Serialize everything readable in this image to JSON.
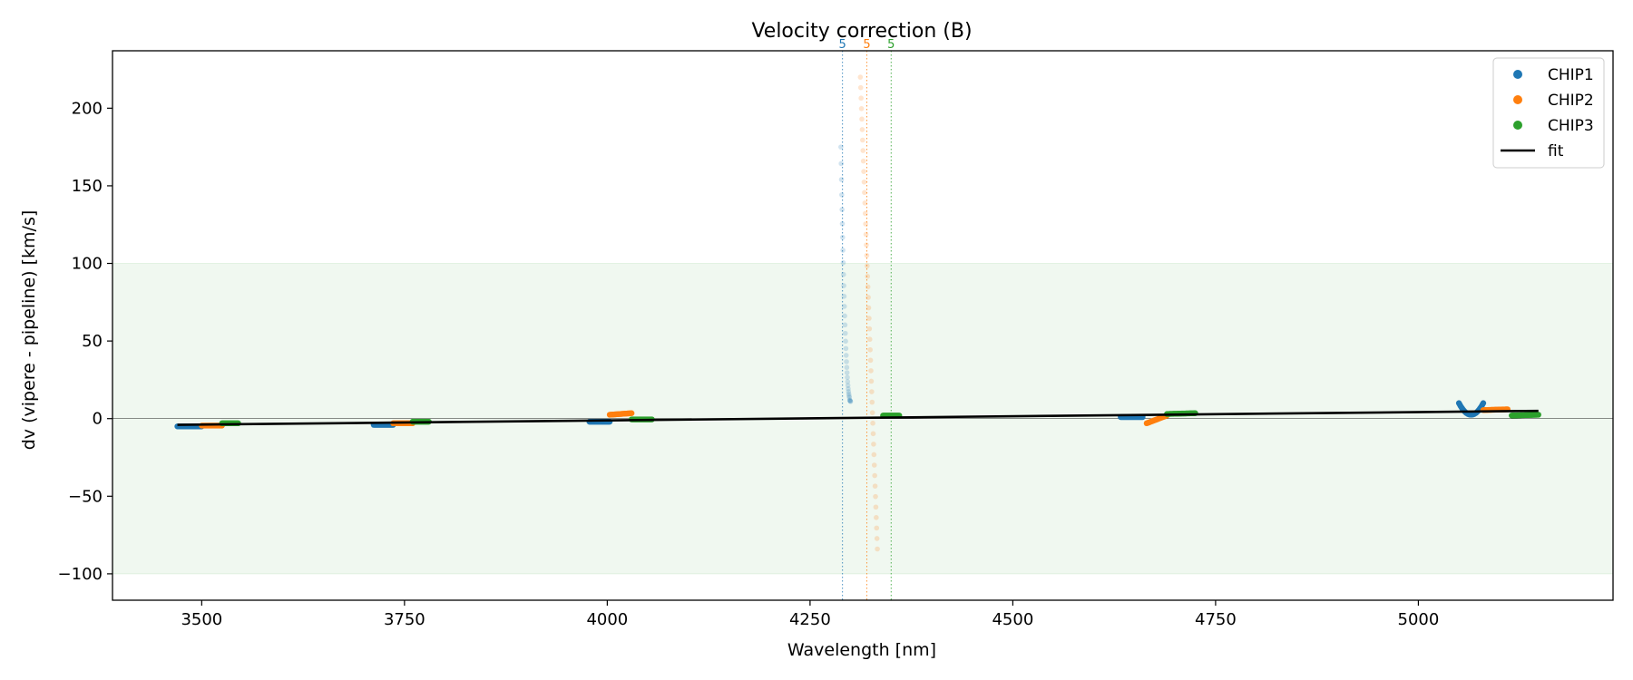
{
  "chart_data": {
    "type": "scatter",
    "title": "Velocity correction (B)",
    "xlabel": "Wavelength [nm]",
    "ylabel": "dv (vipere - pipeline) [km/s]",
    "xlim": [
      3390,
      5240
    ],
    "ylim": [
      -117,
      237
    ],
    "xticks": [
      3500,
      3750,
      4000,
      4250,
      4500,
      4750,
      5000
    ],
    "xtick_labels": [
      "3500",
      "3750",
      "4000",
      "4250",
      "4500",
      "4750",
      "5000"
    ],
    "yticks": [
      -100,
      -50,
      0,
      50,
      100,
      150,
      200
    ],
    "ytick_labels": [
      "−100",
      "−50",
      "0",
      "50",
      "100",
      "150",
      "200"
    ],
    "good_band": [
      -100,
      100
    ],
    "zero_line": 0,
    "colors": {
      "CHIP1": "#1f77b4",
      "CHIP2": "#ff7f0e",
      "CHIP3": "#2ca02c",
      "fit": "#000000",
      "band": "#2ca02c"
    },
    "legend": {
      "position": "top-right",
      "entries": [
        "CHIP1",
        "CHIP2",
        "CHIP3",
        "fit"
      ]
    },
    "series": [
      {
        "name": "CHIP1",
        "segments": [
          {
            "x0": 3470,
            "x1": 3500,
            "y0": -5,
            "y1": -5
          },
          {
            "x0": 3712,
            "x1": 3736,
            "y0": -4,
            "y1": -4
          },
          {
            "x0": 3978,
            "x1": 4003,
            "y0": -2,
            "y1": -2
          },
          {
            "x0": 4633,
            "x1": 4660,
            "y0": 1,
            "y1": 1
          }
        ],
        "curves": [
          {
            "x0": 5050,
            "x1": 5080,
            "vertex_x": 5065,
            "vertex_y": 2.5,
            "edge_y": 10
          }
        ]
      },
      {
        "name": "CHIP2",
        "segments": [
          {
            "x0": 3500,
            "x1": 3525,
            "y0": -4.5,
            "y1": -4.5
          },
          {
            "x0": 3736,
            "x1": 3760,
            "y0": -3,
            "y1": -3
          },
          {
            "x0": 4003,
            "x1": 4030,
            "y0": 2.5,
            "y1": 3.5
          },
          {
            "x0": 4665,
            "x1": 4690,
            "y0": -3,
            "y1": 2
          },
          {
            "x0": 5080,
            "x1": 5110,
            "y0": 5.5,
            "y1": 6
          }
        ]
      },
      {
        "name": "CHIP3",
        "segments": [
          {
            "x0": 3525,
            "x1": 3545,
            "y0": -3,
            "y1": -3
          },
          {
            "x0": 3760,
            "x1": 3780,
            "y0": -2,
            "y1": -2
          },
          {
            "x0": 4030,
            "x1": 4055,
            "y0": -0.5,
            "y1": -0.5
          },
          {
            "x0": 4340,
            "x1": 4360,
            "y0": 2,
            "y1": 2
          },
          {
            "x0": 4690,
            "x1": 4725,
            "y0": 3,
            "y1": 3.5
          },
          {
            "x0": 5115,
            "x1": 5148,
            "y0": 2,
            "y1": 2.5
          }
        ]
      }
    ],
    "outliers": [
      {
        "name": "CHIP1",
        "x0": 4288,
        "y0": 175,
        "x1": 4300,
        "y1": 12,
        "min_y": 11,
        "n": 34
      },
      {
        "name": "CHIP2",
        "x0": 4312,
        "y0": 220,
        "x1": 4333,
        "y1": -84,
        "n": 46
      }
    ],
    "flag_lines": [
      {
        "name": "CHIP1",
        "x": 4290,
        "label": "5"
      },
      {
        "name": "CHIP2",
        "x": 4320,
        "label": "5"
      },
      {
        "name": "CHIP3",
        "x": 4350,
        "label": "5"
      }
    ],
    "fit": {
      "x0": 3470,
      "y0": -4,
      "x1": 5148,
      "y1": 5
    }
  }
}
